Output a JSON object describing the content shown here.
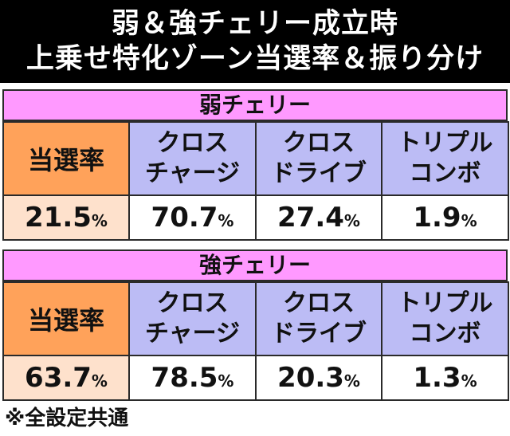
{
  "title": {
    "line1": "弱＆強チェリー成立時",
    "line2": "上乗せ特化ゾーン当選率＆振り分け"
  },
  "sections": [
    {
      "title": "弱チェリー",
      "headers": {
        "rate": "当選率",
        "col1": [
          "クロス",
          "チャージ"
        ],
        "col2": [
          "クロス",
          "ドライブ"
        ],
        "col3": [
          "トリプル",
          "コンボ"
        ]
      },
      "values": {
        "rate": "21.5",
        "col1": "70.7",
        "col2": "27.4",
        "col3": "1.9"
      }
    },
    {
      "title": "強チェリー",
      "headers": {
        "rate": "当選率",
        "col1": [
          "クロス",
          "チャージ"
        ],
        "col2": [
          "クロス",
          "ドライブ"
        ],
        "col3": [
          "トリプル",
          "コンボ"
        ]
      },
      "values": {
        "rate": "63.7",
        "col1": "78.5",
        "col2": "20.3",
        "col3": "1.3"
      }
    }
  ],
  "percent_sign": "%",
  "footer": {
    "mark": "※",
    "text": "全設定共通"
  },
  "colors": {
    "header_bg": "#000000",
    "section_title_bg": "#ff99ff",
    "rate_header_bg": "#ffa25a",
    "column_header_bg": "#bcbcf5",
    "rate_value_bg": "#fee1cc",
    "value_bg": "#ffffff"
  }
}
